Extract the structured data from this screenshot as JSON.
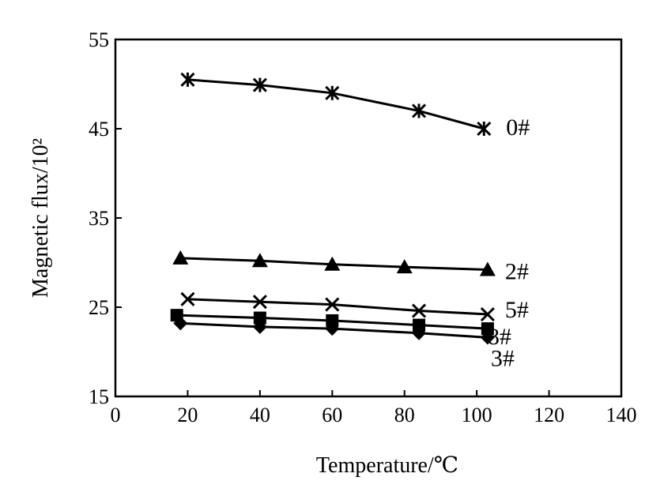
{
  "chart_data": {
    "type": "line",
    "xlabel": "Temperature/℃",
    "ylabel": "Magnetic flux/10²",
    "xlim": [
      0,
      140
    ],
    "ylim": [
      15,
      55
    ],
    "xticks": [
      "0",
      "20",
      "40",
      "60",
      "80",
      "100",
      "120",
      "140"
    ],
    "yticks": [
      "15",
      "25",
      "35",
      "45",
      "55"
    ],
    "grid": false,
    "series": [
      {
        "name": "0#",
        "marker": "asterisk",
        "x": [
          20,
          40,
          60,
          84,
          102
        ],
        "y": [
          50.5,
          49.9,
          49.0,
          47.0,
          45.0
        ]
      },
      {
        "name": "2#",
        "marker": "triangle",
        "x": [
          18,
          40,
          60,
          80,
          103
        ],
        "y": [
          30.5,
          30.2,
          29.8,
          29.5,
          29.2
        ]
      },
      {
        "name": "5#",
        "marker": "x",
        "x": [
          20,
          40,
          60,
          84,
          103
        ],
        "y": [
          25.9,
          25.6,
          25.3,
          24.6,
          24.2
        ]
      },
      {
        "name": "8#",
        "marker": "square",
        "x": [
          17,
          40,
          60,
          84,
          103
        ],
        "y": [
          24.1,
          23.8,
          23.5,
          23.0,
          22.6
        ]
      },
      {
        "name": "3#",
        "marker": "diamond",
        "x": [
          18,
          40,
          60,
          84,
          103
        ],
        "y": [
          23.2,
          22.8,
          22.6,
          22.1,
          21.6
        ]
      }
    ]
  }
}
